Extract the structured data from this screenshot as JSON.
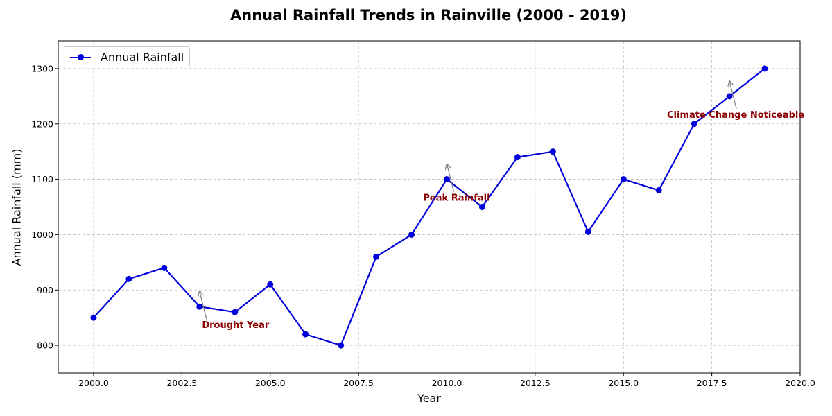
{
  "chart_data": {
    "type": "line",
    "title": "Annual Rainfall Trends in Rainville (2000 - 2019)",
    "xlabel": "Year",
    "ylabel": "Annual Rainfall (mm)",
    "xlim": [
      1999,
      2020
    ],
    "ylim": [
      750,
      1350
    ],
    "xticks": [
      2000,
      2002.5,
      2005,
      2007.5,
      2010,
      2012.5,
      2015,
      2017.5,
      2020
    ],
    "xtick_labels": [
      "2000.0",
      "2002.5",
      "2005.0",
      "2007.5",
      "2010.0",
      "2012.5",
      "2015.0",
      "2017.5",
      "2020.0"
    ],
    "yticks": [
      800,
      900,
      1000,
      1100,
      1200,
      1300
    ],
    "ytick_labels": [
      "800",
      "900",
      "1000",
      "1100",
      "1200",
      "1300"
    ],
    "grid": true,
    "legend_position": "top-left",
    "series": [
      {
        "name": "Annual Rainfall",
        "color": "#0000dd",
        "x": [
          2000,
          2001,
          2002,
          2003,
          2004,
          2005,
          2006,
          2007,
          2008,
          2009,
          2010,
          2011,
          2012,
          2013,
          2014,
          2015,
          2016,
          2017,
          2018,
          2019
        ],
        "values": [
          850,
          920,
          940,
          870,
          860,
          910,
          820,
          800,
          960,
          1000,
          1100,
          1050,
          1140,
          1150,
          1005,
          1100,
          1080,
          1200,
          1250,
          1300
        ]
      }
    ],
    "annotations": [
      {
        "text": "Drought Year",
        "x": 2003,
        "y": 870,
        "color": "#8b0000"
      },
      {
        "text": "Peak Rainfall",
        "x": 2010,
        "y": 1100,
        "color": "#8b0000"
      },
      {
        "text": "Climate Change Noticeable",
        "x": 2018,
        "y": 1250,
        "color": "#8b0000"
      }
    ]
  }
}
